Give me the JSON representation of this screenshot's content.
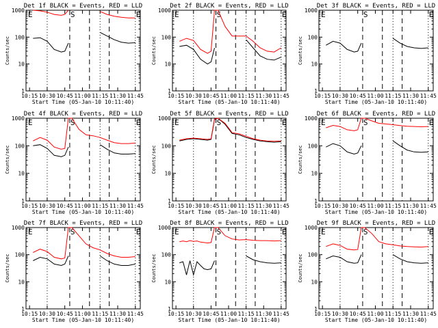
{
  "chart_data": [
    {
      "type": "line",
      "title": "Det 1f BLACK = Events, RED = LLD",
      "xlabel": "Start Time (05-Jan-10 10:11:40)",
      "ylabel": "Counts/sec",
      "xtick_labels": [
        "10:15",
        "10:30",
        "10:45",
        "11:00",
        "11:15",
        "11:30",
        "11:45"
      ],
      "ytick_labels": [
        "1",
        "10",
        "100",
        "1000"
      ],
      "ylim": [
        1,
        1000
      ],
      "yscale": "log",
      "markers": [
        "E",
        "S",
        "E"
      ],
      "series": [
        {
          "color": "#000000",
          "x": [
            10.3,
            10.4,
            10.5,
            10.6,
            10.7,
            10.75,
            10.8,
            10.85,
            10.95,
            11.05,
            11.15,
            11.25,
            11.35,
            11.45,
            11.55,
            11.65,
            11.75
          ],
          "y": [
            90,
            95,
            70,
            35,
            28,
            30,
            60,
            null,
            null,
            null,
            null,
            150,
            110,
            80,
            65,
            60,
            62
          ]
        },
        {
          "color": "#ff0000",
          "x": [
            10.3,
            10.4,
            10.5,
            10.6,
            10.7,
            10.75,
            10.8,
            10.85,
            10.95,
            11.05,
            11.15,
            11.25,
            11.35,
            11.45,
            11.55,
            11.65,
            11.75
          ],
          "y": [
            1000,
            950,
            850,
            700,
            650,
            700,
            1000,
            null,
            null,
            null,
            null,
            900,
            700,
            600,
            550,
            520,
            520
          ]
        }
      ]
    },
    {
      "type": "line",
      "title": "Det 2f BLACK = Events, RED = LLD",
      "xlabel": "Start Time (05-Jan-10 10:11:40)",
      "ylabel": "Counts/sec",
      "xtick_labels": [
        "10:15",
        "10:30",
        "10:45",
        "11:00",
        "11:15",
        "11:30",
        "11:45"
      ],
      "ytick_labels": [
        "1",
        "10",
        "100",
        "1000"
      ],
      "ylim": [
        1,
        1000
      ],
      "yscale": "log",
      "markers": [
        "E",
        "S",
        "E"
      ],
      "series": [
        {
          "color": "#000000",
          "x": [
            10.3,
            10.4,
            10.5,
            10.6,
            10.7,
            10.75,
            10.8,
            10.85,
            10.95,
            11.05,
            11.15,
            11.25,
            11.35,
            11.45,
            11.55,
            11.65,
            11.75
          ],
          "y": [
            45,
            50,
            35,
            15,
            10,
            12,
            40,
            null,
            null,
            null,
            null,
            80,
            40,
            20,
            15,
            14,
            18
          ]
        },
        {
          "color": "#ff0000",
          "x": [
            10.3,
            10.4,
            10.5,
            10.6,
            10.7,
            10.75,
            10.8,
            10.85,
            10.95,
            11.05,
            11.15,
            11.25,
            11.35,
            11.45,
            11.55,
            11.65,
            11.75
          ],
          "y": [
            70,
            90,
            75,
            35,
            25,
            30,
            1000,
            1000,
            250,
            110,
            110,
            110,
            70,
            40,
            30,
            28,
            40
          ]
        }
      ]
    },
    {
      "type": "line",
      "title": "Det 3f BLACK = Events, RED = LLD",
      "xlabel": "Start Time (05-Jan-10 10:11:40)",
      "ylabel": "Counts/sec",
      "xtick_labels": [
        "10:15",
        "10:30",
        "10:45",
        "11:00",
        "11:15",
        "11:30",
        "11:45"
      ],
      "ytick_labels": [
        "1",
        "10",
        "100",
        "1000"
      ],
      "ylim": [
        1,
        1000
      ],
      "yscale": "log",
      "markers": [
        "E",
        "S",
        "E"
      ],
      "series": [
        {
          "color": "#000000",
          "x": [
            10.3,
            10.4,
            10.5,
            10.6,
            10.7,
            10.75,
            10.8,
            10.85,
            10.95,
            11.05,
            11.15,
            11.25,
            11.35,
            11.45,
            11.55,
            11.65,
            11.75
          ],
          "y": [
            50,
            70,
            60,
            35,
            28,
            30,
            60,
            null,
            null,
            null,
            null,
            90,
            60,
            45,
            40,
            38,
            40
          ]
        }
      ]
    },
    {
      "type": "line",
      "title": "Det 4f BLACK = Events, RED = LLD",
      "xlabel": "Start Time (05-Jan-10 10:11:40)",
      "ylabel": "Counts/sec",
      "xtick_labels": [
        "10:15",
        "10:30",
        "10:45",
        "11:00",
        "11:15",
        "11:30",
        "11:45"
      ],
      "ytick_labels": [
        "1",
        "10",
        "100",
        "1000"
      ],
      "ylim": [
        1,
        1000
      ],
      "yscale": "log",
      "markers": [
        "E",
        "S",
        "E"
      ],
      "series": [
        {
          "color": "#000000",
          "x": [
            10.3,
            10.4,
            10.5,
            10.6,
            10.7,
            10.75,
            10.8,
            10.85,
            10.95,
            11.05,
            11.15,
            11.25,
            11.35,
            11.45,
            11.55,
            11.65,
            11.75
          ],
          "y": [
            100,
            110,
            80,
            45,
            40,
            45,
            90,
            null,
            null,
            null,
            null,
            110,
            75,
            55,
            50,
            50,
            52
          ]
        },
        {
          "color": "#ff0000",
          "x": [
            10.3,
            10.4,
            10.5,
            10.6,
            10.7,
            10.75,
            10.8,
            10.85,
            10.95,
            11.05,
            11.15,
            11.25,
            11.35,
            11.45,
            11.55,
            11.65,
            11.75
          ],
          "y": [
            150,
            200,
            160,
            90,
            75,
            80,
            1000,
            1000,
            400,
            250,
            230,
            200,
            160,
            130,
            120,
            120,
            125
          ]
        }
      ]
    },
    {
      "type": "line",
      "title": "Det 5f BLACK = Events, RED = LLD",
      "xlabel": "Start Time (05-Jan-10 10:11:40)",
      "ylabel": "Counts/sec",
      "xtick_labels": [
        "10:15",
        "10:30",
        "10:45",
        "11:00",
        "11:15",
        "11:30",
        "11:45"
      ],
      "ytick_labels": [
        "1",
        "10",
        "100",
        "1000"
      ],
      "ylim": [
        1,
        1000
      ],
      "yscale": "log",
      "markers": [
        "E",
        "S",
        "E"
      ],
      "series": [
        {
          "color": "#000000",
          "x": [
            10.3,
            10.4,
            10.5,
            10.6,
            10.7,
            10.75,
            10.8,
            10.85,
            10.95,
            11.05,
            11.15,
            11.25,
            11.35,
            11.45,
            11.55,
            11.65,
            11.75
          ],
          "y": [
            150,
            170,
            180,
            170,
            160,
            170,
            900,
            1000,
            600,
            280,
            250,
            200,
            170,
            150,
            140,
            135,
            140
          ]
        },
        {
          "color": "#ff0000",
          "x": [
            10.3,
            10.4,
            10.5,
            10.6,
            10.7,
            10.75,
            10.8,
            10.85,
            10.95,
            11.05,
            11.15,
            11.25,
            11.35,
            11.45,
            11.55,
            11.65,
            11.75
          ],
          "y": [
            160,
            180,
            190,
            180,
            170,
            180,
            950,
            1000,
            650,
            300,
            270,
            220,
            180,
            160,
            150,
            145,
            150
          ]
        }
      ]
    },
    {
      "type": "line",
      "title": "Det 6f BLACK = Events, RED = LLD",
      "xlabel": "Start Time (05-Jan-10 10:11:40)",
      "ylabel": "Counts/sec",
      "xtick_labels": [
        "10:15",
        "10:30",
        "10:45",
        "11:00",
        "11:15",
        "11:30",
        "11:45"
      ],
      "ytick_labels": [
        "1",
        "10",
        "100",
        "1000"
      ],
      "ylim": [
        1,
        1000
      ],
      "yscale": "log",
      "markers": [
        "E",
        "S",
        "E"
      ],
      "series": [
        {
          "color": "#000000",
          "x": [
            10.3,
            10.4,
            10.5,
            10.6,
            10.7,
            10.75,
            10.8,
            10.85,
            10.95,
            11.05,
            11.15,
            11.25,
            11.35,
            11.45,
            11.55,
            11.65,
            11.75
          ],
          "y": [
            90,
            120,
            100,
            60,
            50,
            55,
            100,
            null,
            null,
            null,
            null,
            150,
            100,
            70,
            60,
            58,
            60
          ]
        },
        {
          "color": "#ff0000",
          "x": [
            10.3,
            10.4,
            10.5,
            10.6,
            10.7,
            10.75,
            10.8,
            10.85,
            10.95,
            11.05,
            11.15,
            11.25,
            11.35,
            11.45,
            11.55,
            11.65,
            11.75
          ],
          "y": [
            450,
            550,
            500,
            380,
            350,
            380,
            1000,
            1000,
            800,
            650,
            620,
            580,
            540,
            510,
            500,
            490,
            500
          ]
        }
      ]
    },
    {
      "type": "line",
      "title": "Det 7f BLACK = Events, RED = LLD",
      "xlabel": "Start Time (05-Jan-10 10:11:40)",
      "ylabel": "Counts/sec",
      "xtick_labels": [
        "10:15",
        "10:30",
        "10:45",
        "11:00",
        "11:15",
        "11:30",
        "11:45"
      ],
      "ytick_labels": [
        "1",
        "10",
        "100",
        "1000"
      ],
      "ylim": [
        1,
        1000
      ],
      "yscale": "log",
      "markers": [
        "E",
        "S",
        "E"
      ],
      "series": [
        {
          "color": "#000000",
          "x": [
            10.3,
            10.4,
            10.5,
            10.6,
            10.7,
            10.75,
            10.8,
            10.85,
            10.95,
            11.05,
            11.15,
            11.25,
            11.35,
            11.45,
            11.55,
            11.65,
            11.75
          ],
          "y": [
            60,
            80,
            70,
            45,
            40,
            45,
            90,
            null,
            null,
            null,
            null,
            90,
            60,
            45,
            40,
            40,
            45
          ]
        },
        {
          "color": "#ff0000",
          "x": [
            10.3,
            10.4,
            10.5,
            10.6,
            10.7,
            10.75,
            10.8,
            10.85,
            10.95,
            11.05,
            11.15,
            11.25,
            11.35,
            11.45,
            11.55,
            11.65,
            11.75
          ],
          "y": [
            120,
            160,
            130,
            80,
            70,
            75,
            1000,
            1000,
            500,
            250,
            180,
            150,
            110,
            90,
            80,
            80,
            85
          ]
        }
      ]
    },
    {
      "type": "line",
      "title": "Det 8f BLACK = Events, RED = LLD",
      "xlabel": "Start Time (05-Jan-10 10:11:40)",
      "ylabel": "Counts/sec",
      "xtick_labels": [
        "10:15",
        "10:30",
        "10:45",
        "11:00",
        "11:15",
        "11:30",
        "11:45"
      ],
      "ytick_labels": [
        "1",
        "10",
        "100",
        "1000"
      ],
      "ylim": [
        1,
        1000
      ],
      "yscale": "log",
      "markers": [
        "E",
        "S",
        "E"
      ],
      "series": [
        {
          "color": "#000000",
          "x": [
            10.3,
            10.35,
            10.4,
            10.45,
            10.5,
            10.55,
            10.6,
            10.65,
            10.7,
            10.75,
            10.8,
            10.85,
            10.95,
            11.05,
            11.15,
            11.25,
            11.35,
            11.45,
            11.55,
            11.65,
            11.75
          ],
          "y": [
            50,
            55,
            18,
            60,
            18,
            55,
            40,
            30,
            28,
            30,
            60,
            null,
            null,
            null,
            null,
            90,
            65,
            55,
            50,
            48,
            50
          ]
        },
        {
          "color": "#ff0000",
          "x": [
            10.3,
            10.35,
            10.4,
            10.45,
            10.5,
            10.55,
            10.6,
            10.65,
            10.7,
            10.75,
            10.8,
            10.85,
            10.95,
            11.05,
            11.15,
            11.25,
            11.35,
            11.45,
            11.55,
            11.65,
            11.75
          ],
          "y": [
            300,
            320,
            300,
            330,
            310,
            320,
            290,
            280,
            270,
            280,
            1000,
            1000,
            500,
            380,
            350,
            360,
            340,
            330,
            330,
            320,
            330
          ]
        }
      ]
    },
    {
      "type": "line",
      "title": "Det 9f BLACK = Events, RED = LLD",
      "xlabel": "Start Time (05-Jan-10 10:11:40)",
      "ylabel": "Counts/sec",
      "xtick_labels": [
        "10:15",
        "10:30",
        "10:45",
        "11:00",
        "11:15",
        "11:30",
        "11:45"
      ],
      "ytick_labels": [
        "1",
        "10",
        "100",
        "1000"
      ],
      "ylim": [
        1,
        1000
      ],
      "yscale": "log",
      "markers": [
        "E",
        "S",
        "E"
      ],
      "series": [
        {
          "color": "#000000",
          "x": [
            10.3,
            10.4,
            10.5,
            10.6,
            10.7,
            10.75,
            10.8,
            10.85,
            10.95,
            11.05,
            11.15,
            11.25,
            11.35,
            11.45,
            11.55,
            11.65,
            11.75
          ],
          "y": [
            70,
            90,
            80,
            55,
            48,
            50,
            100,
            null,
            null,
            null,
            null,
            100,
            70,
            55,
            50,
            48,
            50
          ]
        },
        {
          "color": "#ff0000",
          "x": [
            10.3,
            10.4,
            10.5,
            10.6,
            10.7,
            10.75,
            10.8,
            10.85,
            10.95,
            11.05,
            11.15,
            11.25,
            11.35,
            11.45,
            11.55,
            11.65,
            11.75
          ],
          "y": [
            200,
            250,
            220,
            160,
            150,
            155,
            1000,
            1000,
            600,
            300,
            250,
            230,
            210,
            200,
            195,
            190,
            200
          ]
        }
      ]
    }
  ]
}
